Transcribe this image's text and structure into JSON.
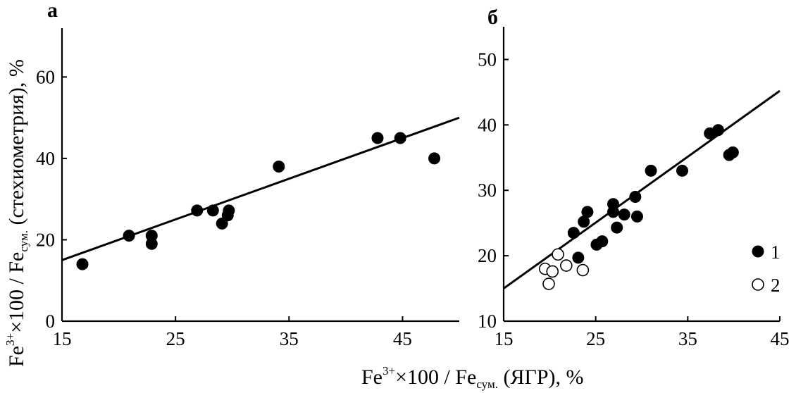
{
  "x_axis_title": {
    "base": "Fe",
    "sup": "3+",
    "mid": "×100 / Fe",
    "sub": "сум.",
    "tail": " (ЯГР), %"
  },
  "y_axis_title": {
    "base": "Fe",
    "sup": "3+",
    "mid": "×100 / Fe",
    "sub": "сум.",
    "tail": " (стехиометрия), %"
  },
  "legend": [
    {
      "marker": "filled-circle",
      "label": "1"
    },
    {
      "marker": "open-circle",
      "label": "2"
    }
  ],
  "chart_data": [
    {
      "type": "scatter",
      "panel": "а",
      "xlim": [
        15,
        50
      ],
      "ylim": [
        0,
        72
      ],
      "x_ticks": [
        15,
        25,
        35,
        45
      ],
      "x_tick_labels": [
        "15",
        "25",
        "35",
        "45"
      ],
      "y_ticks": [
        0,
        20,
        40,
        60
      ],
      "y_tick_labels": [
        "0",
        "20",
        "40",
        "60"
      ],
      "grid": false,
      "series": [
        {
          "marker": "filled-circle",
          "points": [
            [
              16.8,
              14
            ],
            [
              20.9,
              21
            ],
            [
              22.9,
              21
            ],
            [
              22.9,
              19
            ],
            [
              26.9,
              27.2
            ],
            [
              28.3,
              27.2
            ],
            [
              29.1,
              24
            ],
            [
              29.6,
              26
            ],
            [
              29.7,
              27.2
            ],
            [
              34.1,
              38
            ],
            [
              42.8,
              45
            ],
            [
              44.8,
              45
            ],
            [
              47.8,
              40
            ]
          ]
        }
      ],
      "fit_line": {
        "x": [
          15,
          50
        ],
        "y": [
          15,
          50
        ]
      }
    },
    {
      "type": "scatter",
      "panel": "б",
      "xlim": [
        15,
        45
      ],
      "ylim": [
        10,
        55
      ],
      "x_ticks": [
        15,
        25,
        35,
        45
      ],
      "x_tick_labels": [
        "15",
        "25",
        "35",
        "45"
      ],
      "y_ticks": [
        10,
        20,
        30,
        40,
        50
      ],
      "y_tick_labels": [
        "10",
        "20",
        "30",
        "40",
        "50"
      ],
      "grid": false,
      "legend_position": "bottom-right",
      "series": [
        {
          "legend": "1",
          "marker": "filled-circle",
          "points": [
            [
              22.6,
              23.5
            ],
            [
              23.1,
              19.7
            ],
            [
              23.7,
              25.2
            ],
            [
              24.1,
              26.7
            ],
            [
              25.1,
              21.7
            ],
            [
              25.7,
              22.2
            ],
            [
              26.9,
              27.9
            ],
            [
              26.9,
              26.7
            ],
            [
              27.3,
              24.3
            ],
            [
              28.1,
              26.3
            ],
            [
              29.3,
              29
            ],
            [
              29.5,
              26
            ],
            [
              31,
              33
            ],
            [
              34.4,
              33
            ],
            [
              37.4,
              38.7
            ],
            [
              38.3,
              39.2
            ],
            [
              39.5,
              35.4
            ],
            [
              39.9,
              35.8
            ]
          ]
        },
        {
          "legend": "2",
          "marker": "open-circle",
          "points": [
            [
              19.5,
              18
            ],
            [
              19.9,
              15.7
            ],
            [
              20.3,
              17.6
            ],
            [
              20.9,
              20.2
            ],
            [
              21.8,
              18.5
            ],
            [
              23.6,
              17.8
            ]
          ]
        }
      ],
      "fit_line": {
        "x": [
          15,
          45
        ],
        "y": [
          15,
          45.2
        ]
      }
    }
  ]
}
